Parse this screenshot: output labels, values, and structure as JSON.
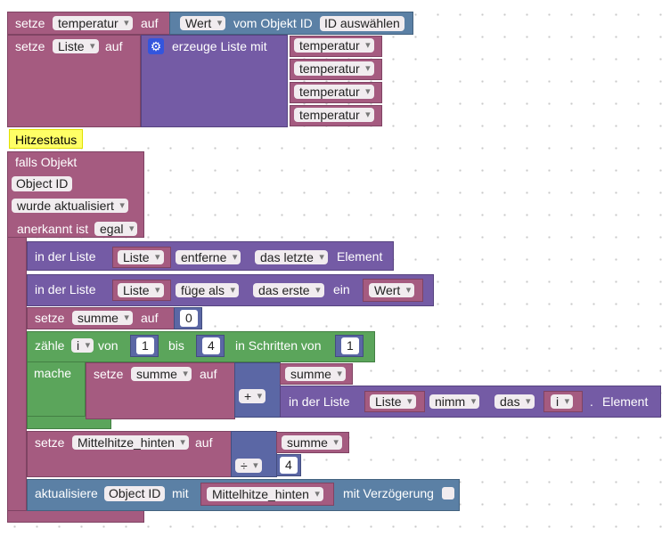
{
  "block1": {
    "prefix": "setze",
    "var": "temperatur",
    "auf": "auf",
    "wert": "Wert",
    "vom_objekt": "vom Objekt ID",
    "id_button": "ID auswählen"
  },
  "block2": {
    "prefix": "setze",
    "var": "Liste",
    "auf": "auf",
    "create": "erzeuge Liste mit",
    "items": [
      "temperatur",
      "temperatur",
      "temperatur",
      "temperatur"
    ]
  },
  "comment": "Hitzestatus",
  "trigger": {
    "falls": "falls Objekt",
    "object_id": "Object ID",
    "event": "wurde aktualisiert",
    "ack_label": "anerkannt ist",
    "ack_value": "egal"
  },
  "remove_stmt": {
    "label": "in der Liste",
    "list": "Liste",
    "op": "entferne",
    "where": "das letzte",
    "suffix": "Element"
  },
  "insert_stmt": {
    "label": "in der Liste",
    "list": "Liste",
    "op": "füge als",
    "where": "das erste",
    "ein": "ein",
    "value": "Wert"
  },
  "set_sum": {
    "prefix": "setze",
    "var": "summe",
    "auf": "auf",
    "value": "0"
  },
  "loop": {
    "label": "zähle",
    "var": "i",
    "von": "von",
    "from": "1",
    "bis": "bis",
    "to": "4",
    "step_label": "in Schritten von",
    "step": "1",
    "mache": "mache"
  },
  "loop_body": {
    "prefix": "setze",
    "var": "summe",
    "auf": "auf",
    "operand_var": "summe",
    "op": "+",
    "list_label": "in der Liste",
    "list": "Liste",
    "get": "nimm",
    "from": "das",
    "index_var": "i",
    "dot": ".",
    "element": "Element"
  },
  "set_avg": {
    "prefix": "setze",
    "var": "Mittelhitze_hinten",
    "auf": "auf",
    "operand_var": "summe",
    "op": "÷",
    "divisor": "4"
  },
  "update": {
    "label": "aktualisiere",
    "object_id": "Object ID",
    "mit": "mit",
    "value": "Mittelhitze_hinten",
    "delay": "mit Verzögerung"
  },
  "colors": {
    "variables": "#a55b80",
    "lists": "#745ba5",
    "logic": "#5b80a5",
    "loops": "#5ba55b",
    "math": "#5b67a5",
    "comment": "#ffff66"
  }
}
